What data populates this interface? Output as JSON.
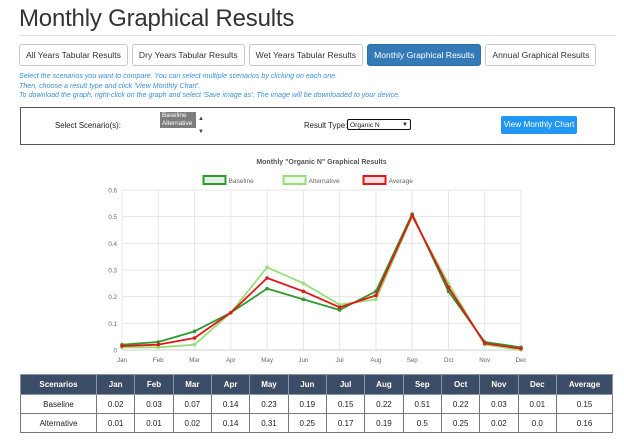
{
  "page": {
    "title": "Monthly Graphical Results"
  },
  "tabs": [
    {
      "label": "All Years Tabular Results",
      "active": false
    },
    {
      "label": "Dry Years Tabular Results",
      "active": false
    },
    {
      "label": "Wet Years Tabular Results",
      "active": false
    },
    {
      "label": "Monthly Graphical Results",
      "active": true
    },
    {
      "label": "Annual Graphical Results",
      "active": false
    }
  ],
  "instructions": [
    "Select the scenarios you want to compare. You can select multiple scenarios by clicking on each one.",
    "Then, choose a result type and click 'View Monthly Chart'.",
    "To download the graph, right-click on the graph and select 'Save image as'. The image will be downloaded to your device."
  ],
  "controls": {
    "scenario_label": "Select Scenario(s):",
    "scenarios": [
      "Baseline",
      "Alternative"
    ],
    "result_type_label": "Result Type:",
    "result_type_value": "Organic N",
    "view_button": "View Monthly Chart"
  },
  "chart_data": {
    "type": "line",
    "title": "Monthly \"Organic N\" Graphical Results",
    "categories": [
      "Jan",
      "Feb",
      "Mar",
      "Apr",
      "May",
      "Jun",
      "Jul",
      "Aug",
      "Sep",
      "Oct",
      "Nov",
      "Dec"
    ],
    "ylim": [
      0,
      0.6
    ],
    "yticks": [
      0,
      0.1,
      0.2,
      0.3,
      0.4,
      0.5,
      0.6
    ],
    "grid": true,
    "legend_position": "top",
    "series": [
      {
        "name": "Baseline",
        "color": "#2e9a2e",
        "values": [
          0.02,
          0.03,
          0.07,
          0.14,
          0.23,
          0.19,
          0.15,
          0.22,
          0.51,
          0.22,
          0.03,
          0.01
        ]
      },
      {
        "name": "Alternative",
        "color": "#9ade7a",
        "values": [
          0.01,
          0.01,
          0.02,
          0.14,
          0.31,
          0.25,
          0.17,
          0.19,
          0.5,
          0.25,
          0.02,
          0.0
        ]
      },
      {
        "name": "Average",
        "color": "#e01818",
        "values": [
          0.015,
          0.02,
          0.045,
          0.14,
          0.27,
          0.22,
          0.16,
          0.205,
          0.505,
          0.235,
          0.025,
          0.005
        ]
      }
    ]
  },
  "table": {
    "headers": [
      "Scenarios",
      "Jan",
      "Feb",
      "Mar",
      "Apr",
      "May",
      "Jun",
      "Jul",
      "Aug",
      "Sep",
      "Oct",
      "Nov",
      "Dec",
      "Average"
    ],
    "rows": [
      [
        "Baseline",
        "0.02",
        "0.03",
        "0.07",
        "0.14",
        "0.23",
        "0.19",
        "0.15",
        "0.22",
        "0.51",
        "0.22",
        "0.03",
        "0.01",
        "0.15"
      ],
      [
        "Alternative",
        "0.01",
        "0.01",
        "0.02",
        "0.14",
        "0.31",
        "0.25",
        "0.17",
        "0.19",
        "0.5",
        "0.25",
        "0.02",
        "0.0",
        "0.16"
      ]
    ]
  }
}
